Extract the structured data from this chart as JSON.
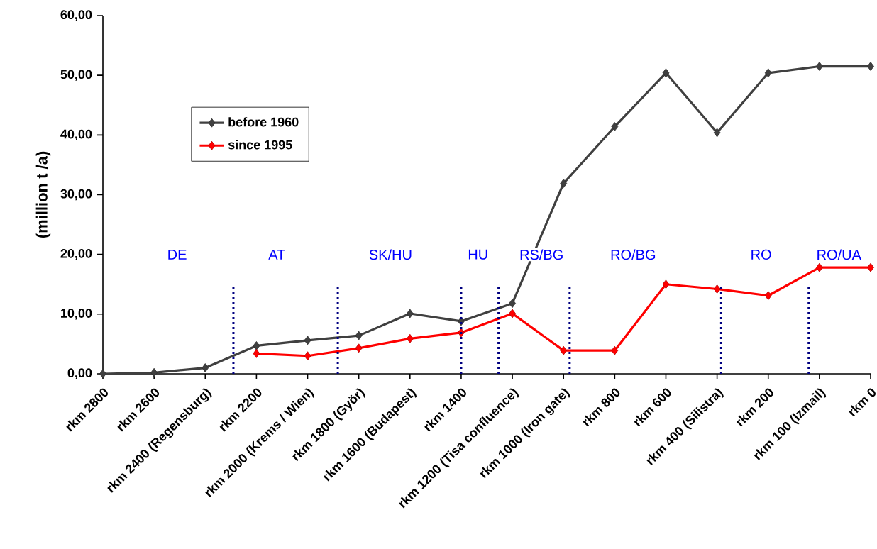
{
  "chart_data": {
    "type": "line",
    "ylabel": "(million t /a)",
    "categories": [
      "rkm 2800",
      "rkm 2600",
      "rkm 2400 (Regensburg)",
      "rkm 2200",
      "rkm 2000 (Krems / Wien)",
      "rkm 1800 (Györ)",
      "rkm 1600 (Budapest)",
      "rkm 1400",
      "rkm 1200 (Tisa confluence)",
      "rkm 1000 (Iron gate)",
      "rkm 800",
      "rkm 600",
      "rkm 400 (Silistra)",
      "rkm 200",
      "rkm 100 (Izmail)",
      "rkm 0"
    ],
    "series": [
      {
        "name": "before 1960",
        "color": "#404040",
        "values": [
          0,
          0.2,
          1.0,
          4.7,
          5.6,
          6.4,
          10.1,
          8.8,
          11.8,
          31.9,
          41.4,
          50.4,
          40.4,
          50.4,
          51.5,
          51.5
        ]
      },
      {
        "name": "since 1995",
        "color": "#ff0000",
        "values": [
          null,
          null,
          null,
          3.4,
          3.0,
          4.3,
          5.9,
          6.9,
          10.1,
          3.9,
          3.9,
          15.0,
          14.2,
          13.1,
          17.8,
          17.8
        ]
      }
    ],
    "ylim": [
      0,
      60
    ],
    "yticks": [
      {
        "value": 0,
        "label": "0,00"
      },
      {
        "value": 10,
        "label": "10,00"
      },
      {
        "value": 20,
        "label": "20,00"
      },
      {
        "value": 30,
        "label": "30,00"
      },
      {
        "value": 40,
        "label": "40,00"
      },
      {
        "value": 50,
        "label": "50,00"
      },
      {
        "value": 60,
        "label": "60,00"
      }
    ],
    "marker": "diamond",
    "line_style": "solid",
    "legend": "top left",
    "grid": false,
    "annotations": [
      "DE",
      "AT",
      "SK/HU",
      "HU",
      "RS/BG",
      "RO/BG",
      "RO",
      "RO/UA"
    ]
  }
}
